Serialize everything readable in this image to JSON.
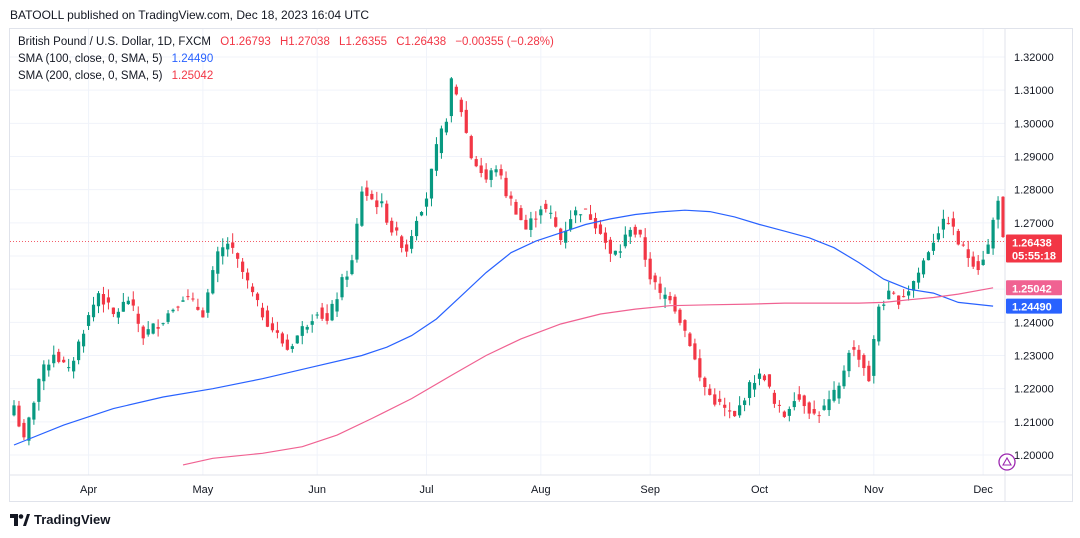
{
  "publisher": "BATOOLL published on TradingView.com, Dec 18, 2023 16:04 UTC",
  "legend": {
    "symbol": "British Pound / U.S. Dollar, 1D, FXCM",
    "open_label": "O",
    "open": "1.26793",
    "high_label": "H",
    "high": "1.27038",
    "low_label": "L",
    "low": "1.26355",
    "close_label": "C",
    "close": "1.26438",
    "change": "−0.00355 (−0.28%)",
    "sma100_label": "SMA (100, close, 0, SMA, 5)",
    "sma100_value": "1.24490",
    "sma200_label": "SMA (200, close, 0, SMA, 5)",
    "sma200_value": "1.25042"
  },
  "footer": {
    "brand": "TradingView"
  },
  "colors": {
    "up": "#089981",
    "down": "#f23645",
    "sma100": "#2962ff",
    "sma200": "#f06292",
    "grid": "#f0f3fa",
    "axis_text": "#131722"
  },
  "price_tags": {
    "last_price": "1.26438",
    "countdown": "05:55:18",
    "sma200": "1.25042",
    "sma100": "1.24490"
  },
  "chart_data": {
    "type": "candlestick",
    "title": "British Pound / U.S. Dollar, 1D, FXCM",
    "ylim": [
      1.195,
      1.325
    ],
    "y_ticks": [
      1.2,
      1.21,
      1.22,
      1.23,
      1.24,
      1.25,
      1.26,
      1.27,
      1.28,
      1.29,
      1.3,
      1.31,
      1.32
    ],
    "y_tick_labels": [
      "1.20000",
      "1.21000",
      "1.22000",
      "1.23000",
      "1.24000",
      "1.25000",
      "1.26000",
      "1.27000",
      "1.28000",
      "1.29000",
      "1.30000",
      "1.31000",
      "1.32000"
    ],
    "x_tick_labels": [
      "Apr",
      "May",
      "Jun",
      "Jul",
      "Aug",
      "Sep",
      "Oct",
      "Nov",
      "Dec"
    ],
    "x_tick_index": [
      15,
      38,
      61,
      83,
      106,
      128,
      150,
      173,
      195
    ],
    "grid": true,
    "last_close": 1.26438,
    "series": [
      {
        "name": "SMA (100, close, 0, SMA, 5)",
        "type": "line",
        "points": [
          [
            0,
            1.203
          ],
          [
            10,
            1.209
          ],
          [
            20,
            1.214
          ],
          [
            30,
            1.2175
          ],
          [
            40,
            1.22
          ],
          [
            50,
            1.223
          ],
          [
            60,
            1.2265
          ],
          [
            70,
            1.23
          ],
          [
            75,
            1.2325
          ],
          [
            80,
            1.236
          ],
          [
            85,
            1.241
          ],
          [
            90,
            1.248
          ],
          [
            95,
            1.255
          ],
          [
            100,
            1.261
          ],
          [
            105,
            1.2645
          ],
          [
            110,
            1.267
          ],
          [
            115,
            1.2695
          ],
          [
            120,
            1.2712
          ],
          [
            125,
            1.2725
          ],
          [
            130,
            1.2733
          ],
          [
            135,
            1.2738
          ],
          [
            140,
            1.2734
          ],
          [
            145,
            1.2718
          ],
          [
            150,
            1.2695
          ],
          [
            155,
            1.2675
          ],
          [
            160,
            1.2655
          ],
          [
            165,
            1.2625
          ],
          [
            170,
            1.258
          ],
          [
            175,
            1.253
          ],
          [
            180,
            1.25
          ],
          [
            185,
            1.2488
          ],
          [
            190,
            1.246
          ],
          [
            197,
            1.2449
          ]
        ]
      },
      {
        "name": "SMA (200, close, 0, SMA, 5)",
        "type": "line",
        "points": [
          [
            34,
            1.197
          ],
          [
            40,
            1.199
          ],
          [
            50,
            1.2005
          ],
          [
            58,
            1.2025
          ],
          [
            65,
            1.206
          ],
          [
            72,
            1.211
          ],
          [
            80,
            1.217
          ],
          [
            88,
            1.224
          ],
          [
            95,
            1.23
          ],
          [
            102,
            1.235
          ],
          [
            110,
            1.2395
          ],
          [
            118,
            1.2425
          ],
          [
            125,
            1.244
          ],
          [
            132,
            1.245
          ],
          [
            140,
            1.2453
          ],
          [
            148,
            1.2455
          ],
          [
            155,
            1.2458
          ],
          [
            162,
            1.2458
          ],
          [
            170,
            1.2458
          ],
          [
            175,
            1.246
          ],
          [
            180,
            1.2468
          ],
          [
            185,
            1.2475
          ],
          [
            190,
            1.2485
          ],
          [
            197,
            1.2504
          ]
        ]
      }
    ],
    "anchors": [
      [
        0,
        1.215
      ],
      [
        2,
        1.204
      ],
      [
        5,
        1.223
      ],
      [
        8,
        1.231
      ],
      [
        11,
        1.225
      ],
      [
        14,
        1.238
      ],
      [
        17,
        1.249
      ],
      [
        20,
        1.242
      ],
      [
        23,
        1.247
      ],
      [
        26,
        1.236
      ],
      [
        30,
        1.241
      ],
      [
        34,
        1.248
      ],
      [
        38,
        1.243
      ],
      [
        41,
        1.26
      ],
      [
        43,
        1.264
      ],
      [
        46,
        1.255
      ],
      [
        49,
        1.245
      ],
      [
        52,
        1.238
      ],
      [
        55,
        1.232
      ],
      [
        58,
        1.238
      ],
      [
        61,
        1.244
      ],
      [
        63,
        1.24
      ],
      [
        66,
        1.252
      ],
      [
        68,
        1.258
      ],
      [
        70,
        1.28
      ],
      [
        72,
        1.277
      ],
      [
        74,
        1.275
      ],
      [
        76,
        1.268
      ],
      [
        79,
        1.262
      ],
      [
        81,
        1.272
      ],
      [
        83,
        1.278
      ],
      [
        85,
        1.292
      ],
      [
        87,
        1.302
      ],
      [
        88,
        1.312
      ],
      [
        90,
        1.304
      ],
      [
        92,
        1.29
      ],
      [
        95,
        1.283
      ],
      [
        97,
        1.287
      ],
      [
        99,
        1.279
      ],
      [
        101,
        1.274
      ],
      [
        103,
        1.268
      ],
      [
        106,
        1.275
      ],
      [
        108,
        1.272
      ],
      [
        110,
        1.265
      ],
      [
        112,
        1.272
      ],
      [
        114,
        1.274
      ],
      [
        116,
        1.272
      ],
      [
        118,
        1.268
      ],
      [
        120,
        1.26
      ],
      [
        122,
        1.262
      ],
      [
        124,
        1.269
      ],
      [
        126,
        1.265
      ],
      [
        128,
        1.254
      ],
      [
        130,
        1.248
      ],
      [
        132,
        1.248
      ],
      [
        134,
        1.241
      ],
      [
        136,
        1.234
      ],
      [
        138,
        1.223
      ],
      [
        140,
        1.218
      ],
      [
        142,
        1.215
      ],
      [
        145,
        1.211
      ],
      [
        147,
        1.218
      ],
      [
        149,
        1.223
      ],
      [
        151,
        1.224
      ],
      [
        153,
        1.215
      ],
      [
        155,
        1.212
      ],
      [
        157,
        1.218
      ],
      [
        159,
        1.216
      ],
      [
        161,
        1.212
      ],
      [
        163,
        1.214
      ],
      [
        166,
        1.22
      ],
      [
        168,
        1.232
      ],
      [
        170,
        1.23
      ],
      [
        172,
        1.223
      ],
      [
        174,
        1.245
      ],
      [
        176,
        1.248
      ],
      [
        178,
        1.247
      ],
      [
        180,
        1.25
      ],
      [
        182,
        1.255
      ],
      [
        184,
        1.262
      ],
      [
        186,
        1.268
      ],
      [
        188,
        1.271
      ],
      [
        190,
        1.264
      ],
      [
        192,
        1.26
      ],
      [
        194,
        1.257
      ],
      [
        196,
        1.263
      ],
      [
        198,
        1.278
      ],
      [
        199,
        1.2644
      ]
    ]
  }
}
